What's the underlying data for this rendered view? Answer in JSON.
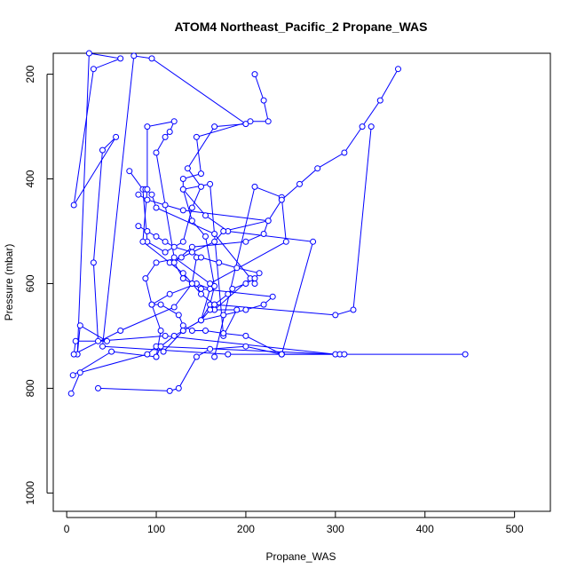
{
  "chart_data": {
    "type": "line",
    "title": "ATOM4 Northeast_Pacific_2 Propane_WAS",
    "xlabel": "Propane_WAS",
    "ylabel": "Pressure (mbar)",
    "xlim": [
      -15,
      540
    ],
    "ylim": [
      1035,
      160
    ],
    "y_inverted": true,
    "x_ticks": [
      0,
      100,
      200,
      300,
      400,
      500
    ],
    "y_ticks": [
      200,
      400,
      600,
      800,
      1000
    ],
    "grid": false,
    "legend": "none",
    "marker": "open-circle",
    "series_color": "#0000ff",
    "series": [
      {
        "x": [
          5,
          15,
          90,
          100,
          300,
          110,
          35,
          30,
          40,
          55,
          8,
          30,
          60,
          25,
          12,
          15,
          45,
          10,
          8,
          60,
          120,
          140,
          145
        ],
        "y": [
          810,
          770,
          735,
          720,
          735,
          700,
          710,
          560,
          345,
          320,
          450,
          190,
          170,
          160,
          735,
          680,
          710,
          710,
          735,
          690,
          645,
          600,
          550
        ]
      },
      {
        "x": [
          70,
          85,
          90,
          110,
          130,
          140,
          150,
          135,
          165,
          200,
          95,
          75,
          40,
          180,
          240,
          305
        ],
        "y": [
          385,
          420,
          520,
          540,
          520,
          455,
          415,
          380,
          300,
          295,
          170,
          165,
          720,
          735,
          735,
          735
        ]
      },
      {
        "x": [
          7,
          50,
          100,
          105,
          95,
          115,
          145,
          160,
          150,
          160,
          165,
          155,
          140,
          130,
          130,
          150,
          145,
          205,
          225,
          220,
          210
        ],
        "y": [
          775,
          730,
          740,
          690,
          640,
          620,
          600,
          610,
          670,
          640,
          605,
          510,
          480,
          420,
          400,
          390,
          320,
          290,
          290,
          250,
          200
        ]
      },
      {
        "x": [
          35,
          115,
          125,
          145,
          160,
          200,
          240,
          275,
          180,
          155,
          130,
          160,
          175,
          190,
          165,
          205,
          210,
          165,
          100,
          95,
          88
        ],
        "y": [
          800,
          805,
          800,
          740,
          725,
          720,
          735,
          520,
          500,
          470,
          420,
          410,
          700,
          650,
          650,
          590,
          600,
          505,
          455,
          430,
          420
        ]
      },
      {
        "x": [
          165,
          210,
          240,
          245,
          160,
          120,
          100,
          110,
          115,
          120,
          90,
          90,
          85,
          115,
          130,
          140,
          150,
          165,
          300,
          320,
          340
        ],
        "y": [
          740,
          415,
          435,
          520,
          600,
          550,
          350,
          320,
          310,
          290,
          300,
          420,
          520,
          560,
          580,
          600,
          620,
          640,
          660,
          650,
          300
        ]
      },
      {
        "x": [
          108,
          130,
          150,
          175,
          200,
          220,
          230,
          150,
          130,
          120,
          140,
          200,
          220,
          225,
          240,
          260,
          280,
          310,
          330,
          350,
          370
        ],
        "y": [
          730,
          690,
          670,
          660,
          650,
          640,
          625,
          610,
          590,
          560,
          530,
          520,
          505,
          480,
          440,
          410,
          380,
          350,
          300,
          250,
          190
        ]
      },
      {
        "x": [
          445,
          310,
          240,
          200,
          175,
          155,
          140,
          130,
          125,
          105,
          95,
          88,
          100,
          128,
          165,
          175,
          225,
          130,
          110,
          90,
          80
        ],
        "y": [
          735,
          735,
          735,
          700,
          695,
          690,
          690,
          680,
          660,
          640,
          640,
          590,
          560,
          550,
          520,
          500,
          480,
          460,
          450,
          440,
          430
        ]
      },
      {
        "x": [
          100,
          105,
          120,
          130,
          150,
          160,
          165,
          180,
          185,
          200,
          210,
          215,
          190,
          170,
          150,
          140,
          120,
          110,
          100,
          90,
          80
        ],
        "y": [
          740,
          720,
          700,
          690,
          670,
          650,
          640,
          620,
          610,
          600,
          590,
          580,
          570,
          560,
          550,
          540,
          530,
          520,
          510,
          500,
          490
        ]
      }
    ]
  }
}
